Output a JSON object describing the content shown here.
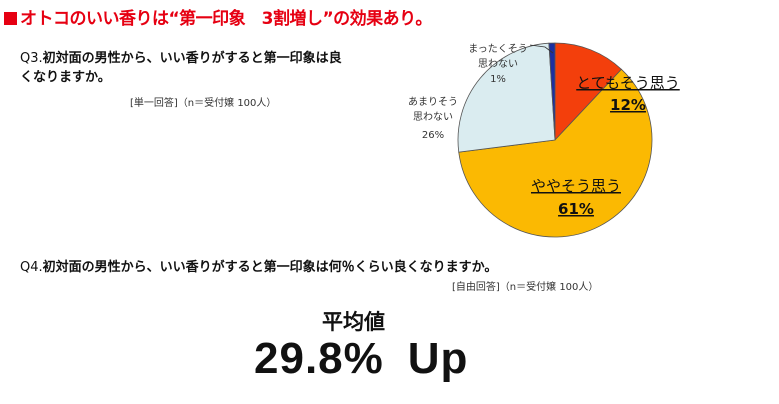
{
  "headline": "オトコのいい香りは“第一印象　3割増し”の効果あり。",
  "q3": {
    "number": "Q3.",
    "question": "初対面の男性から、いい香りがすると第一印象は良くなりますか。",
    "note": "[単一回答]（n＝受付嬢 100人）"
  },
  "q4": {
    "number": "Q4.",
    "question": "初対面の男性から、いい香りがすると第一印象は何％くらい良くなりますか。",
    "note": "[自由回答]（n＝受付嬢 100人）"
  },
  "result": {
    "label": "平均値",
    "value": "29.8%",
    "suffix": "Up"
  },
  "chart_data": {
    "type": "pie",
    "title": "",
    "slices": [
      {
        "label": "とてもそう思う",
        "value": 12,
        "pct": "12%",
        "color": "#f33f0c"
      },
      {
        "label": "ややそう思う",
        "value": 61,
        "pct": "61%",
        "color": "#fbb902"
      },
      {
        "label": "あまりそう思わない",
        "label_lines": [
          "あまりそう",
          "思わない"
        ],
        "value": 26,
        "pct": "26%",
        "color": "#daecf0"
      },
      {
        "label": "まったくそう思わない",
        "label_lines": [
          "まったくそう",
          "思わない"
        ],
        "value": 1,
        "pct": "1%",
        "color": "#1c2fa0"
      }
    ]
  }
}
